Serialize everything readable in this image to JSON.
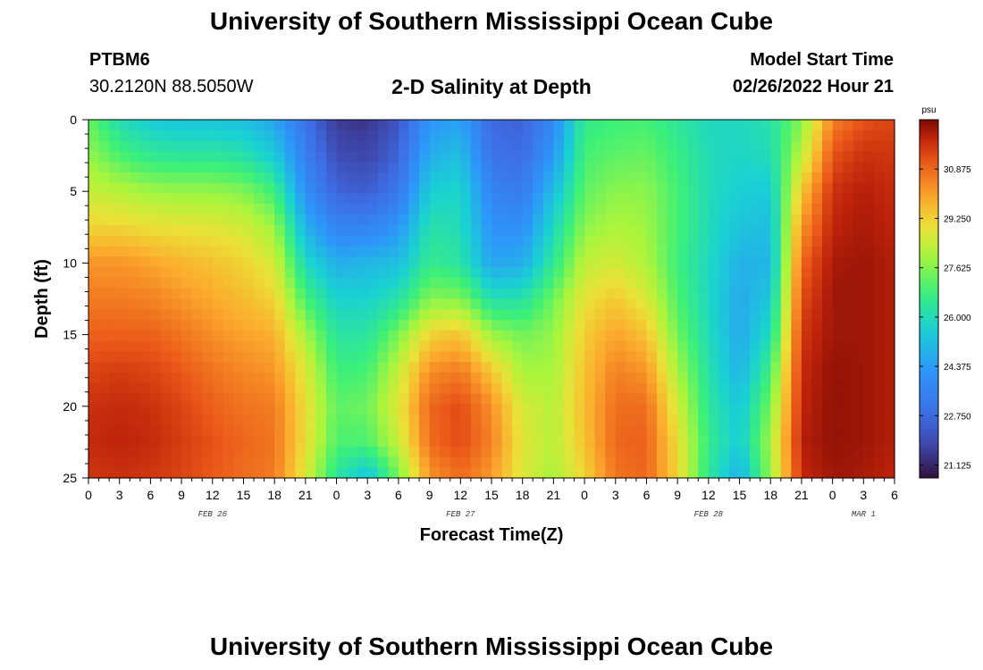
{
  "header": {
    "title": "University of Southern Mississippi Ocean Cube",
    "station_id": "PTBM6",
    "coordinates": "30.2120N  88.5050W",
    "subtitle": "2-D Salinity at Depth",
    "model_start_label": "Model Start Time",
    "model_start_value": "02/26/2022 Hour 21"
  },
  "footer": {
    "title": "University of Southern Mississippi Ocean Cube"
  },
  "chart_data": {
    "type": "heatmap",
    "title": "2-D Salinity at Depth",
    "xlabel": "Forecast Time(Z)",
    "ylabel": "Depth (ft)",
    "x_ticks": [
      "0",
      "3",
      "6",
      "9",
      "12",
      "15",
      "18",
      "21",
      "0",
      "3",
      "6",
      "9",
      "12",
      "15",
      "18",
      "21",
      "0",
      "3",
      "6",
      "9",
      "12",
      "15",
      "18",
      "21",
      "0",
      "3",
      "6"
    ],
    "x_hour_range": [
      0,
      78
    ],
    "date_labels": [
      {
        "text": "FEB 26",
        "hour": 12
      },
      {
        "text": "FEB 27",
        "hour": 36
      },
      {
        "text": "FEB 28",
        "hour": 60
      },
      {
        "text": "MAR 1",
        "hour": 75
      }
    ],
    "y_ticks": [
      0,
      5,
      10,
      15,
      20,
      25
    ],
    "ylim": [
      0,
      25
    ],
    "colorbar": {
      "unit": "psu",
      "ticks": [
        "30.875",
        "29.250",
        "27.625",
        "26.000",
        "24.375",
        "22.750",
        "21.125"
      ],
      "range": [
        20.7,
        32.5
      ]
    },
    "salinity_field_psu": {
      "depth_rows_ft": [
        0,
        2.5,
        5,
        7.5,
        10,
        12.5,
        15,
        17.5,
        20,
        22.5,
        25
      ],
      "hour_cols": [
        0,
        3,
        6,
        9,
        12,
        15,
        18,
        21,
        24,
        27,
        30,
        33,
        36,
        39,
        42,
        45,
        48,
        51,
        54,
        57,
        60,
        63,
        66,
        69,
        72,
        75,
        78
      ],
      "values": [
        [
          27.3,
          26.0,
          25.5,
          25.3,
          25.3,
          25.2,
          24.6,
          23.0,
          21.5,
          21.4,
          22.2,
          24.2,
          24.5,
          22.7,
          22.5,
          23.8,
          26.6,
          26.8,
          26.9,
          26.4,
          25.9,
          25.9,
          26.2,
          27.6,
          30.5,
          31.2,
          31.4
        ],
        [
          27.8,
          27.0,
          26.5,
          26.4,
          26.4,
          26.2,
          25.5,
          23.5,
          22.0,
          21.8,
          22.6,
          24.8,
          25.2,
          23.0,
          22.8,
          24.3,
          26.9,
          27.2,
          27.3,
          26.7,
          26.0,
          25.8,
          26.0,
          28.3,
          31.2,
          31.7,
          31.6
        ],
        [
          28.4,
          28.2,
          27.9,
          27.8,
          27.8,
          27.6,
          26.8,
          24.0,
          22.6,
          22.4,
          23.2,
          25.6,
          25.8,
          23.6,
          23.3,
          25.2,
          27.2,
          27.7,
          27.7,
          26.9,
          26.0,
          25.6,
          25.5,
          29.4,
          31.7,
          32.0,
          31.8
        ],
        [
          29.2,
          29.2,
          29.0,
          28.9,
          28.8,
          28.6,
          27.9,
          24.9,
          23.6,
          23.6,
          24.2,
          26.2,
          26.0,
          24.1,
          24.0,
          25.9,
          27.7,
          28.1,
          27.9,
          26.9,
          26.0,
          25.3,
          25.2,
          30.2,
          31.9,
          32.1,
          31.9
        ],
        [
          30.2,
          30.2,
          30.0,
          29.7,
          29.5,
          29.2,
          28.6,
          25.9,
          24.8,
          25.0,
          25.2,
          26.6,
          26.3,
          24.6,
          24.8,
          26.5,
          28.3,
          28.6,
          28.1,
          26.8,
          25.9,
          24.9,
          25.0,
          30.9,
          32.1,
          32.2,
          32.0
        ],
        [
          30.6,
          30.6,
          30.5,
          30.2,
          29.9,
          29.6,
          29.2,
          26.9,
          25.7,
          25.7,
          26.2,
          27.6,
          27.6,
          26.1,
          26.2,
          27.4,
          28.9,
          29.4,
          28.7,
          27.0,
          25.9,
          24.7,
          25.4,
          31.3,
          32.2,
          32.2,
          32.0
        ],
        [
          31.0,
          31.0,
          31.0,
          30.7,
          30.3,
          30.0,
          29.8,
          28.0,
          26.3,
          26.3,
          27.5,
          29.2,
          29.5,
          27.9,
          27.4,
          27.8,
          29.3,
          30.0,
          29.5,
          27.4,
          26.0,
          24.7,
          26.0,
          31.6,
          32.2,
          32.2,
          32.0
        ],
        [
          31.4,
          31.5,
          31.4,
          31.1,
          30.7,
          30.4,
          30.2,
          28.7,
          26.8,
          26.9,
          28.4,
          30.3,
          30.6,
          29.4,
          28.0,
          28.0,
          29.5,
          30.5,
          30.2,
          28.0,
          26.2,
          24.9,
          26.8,
          31.8,
          32.3,
          32.2,
          32.0
        ],
        [
          31.7,
          31.8,
          31.7,
          31.4,
          31.0,
          30.7,
          30.6,
          29.0,
          27.2,
          27.4,
          28.8,
          30.9,
          31.3,
          30.3,
          28.6,
          28.2,
          29.6,
          30.8,
          30.8,
          28.6,
          26.4,
          25.4,
          27.5,
          31.9,
          32.3,
          32.2,
          32.0
        ],
        [
          31.8,
          31.9,
          31.8,
          31.5,
          31.2,
          30.9,
          30.7,
          29.0,
          27.0,
          27.0,
          28.4,
          30.8,
          31.3,
          30.5,
          28.8,
          28.2,
          29.5,
          30.9,
          31.0,
          29.0,
          26.6,
          25.5,
          28.0,
          32.0,
          32.3,
          32.2,
          32.0
        ],
        [
          31.6,
          31.7,
          31.6,
          31.4,
          31.1,
          30.8,
          30.6,
          28.7,
          26.3,
          25.2,
          27.4,
          30.2,
          30.8,
          30.1,
          28.7,
          28.0,
          29.2,
          30.7,
          30.9,
          29.2,
          26.4,
          24.8,
          27.8,
          31.8,
          32.2,
          32.1,
          31.9
        ]
      ]
    }
  }
}
